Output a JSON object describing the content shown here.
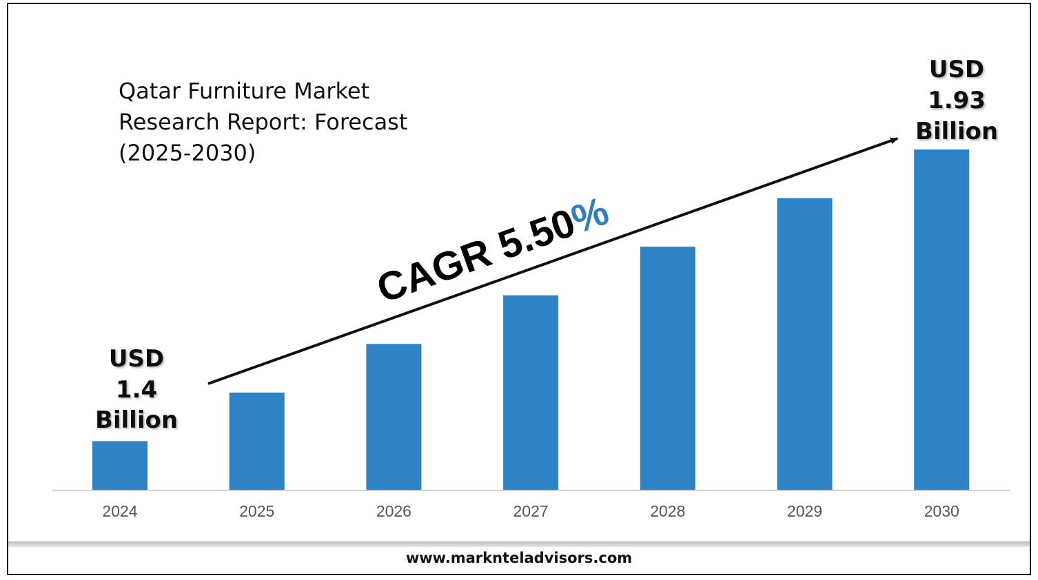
{
  "title": "Qatar Furniture Market\nResearch Report: Forecast\n(2025-2030)",
  "footer": {
    "url": "www.marknteladvisors.com"
  },
  "annotation": {
    "cagr_prefix": "CAGR 5.50",
    "cagr_suffix": "%",
    "prefix_color": "#000000",
    "suffix_color": "#2e7fc1"
  },
  "callouts": {
    "start": {
      "line1": "USD",
      "line2": "1.4",
      "line3": "Billion"
    },
    "end": {
      "line1": "USD",
      "line2": "1.93",
      "line3": "Billion"
    }
  },
  "chart_data": {
    "type": "bar",
    "categories": [
      "2024",
      "2025",
      "2026",
      "2027",
      "2028",
      "2029",
      "2030"
    ],
    "values": [
      1.0,
      2.0,
      3.0,
      4.0,
      5.0,
      6.0,
      7.0
    ],
    "ylim": [
      0,
      7.0
    ],
    "grid": false,
    "bar_color": "#2e83c6"
  }
}
